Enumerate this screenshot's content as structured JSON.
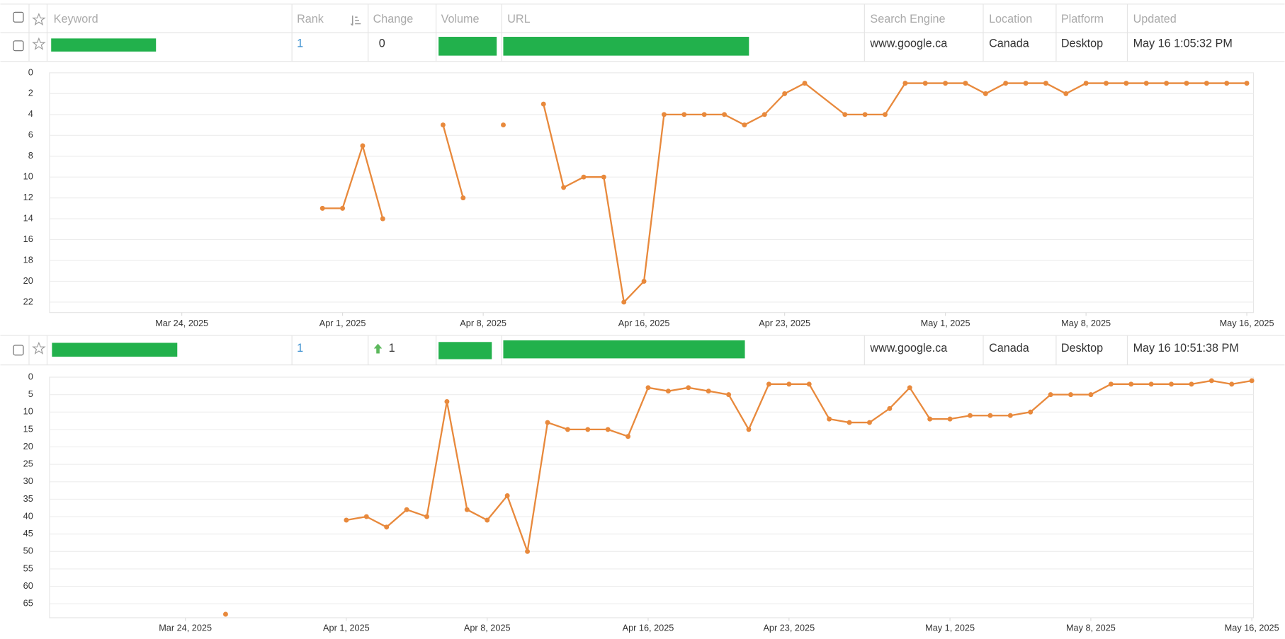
{
  "table": {
    "headers": [
      "Keyword",
      "Rank",
      "Change",
      "Volume",
      "URL",
      "Search Engine",
      "Location",
      "Platform",
      "Updated"
    ],
    "rows": [
      {
        "rank": 1,
        "change": 0,
        "search_engine": "www.google.ca",
        "location": "Canada",
        "platform": "Desktop",
        "updated": "May 16 1:05:32 PM"
      },
      {
        "rank": 1,
        "change": 1,
        "search_engine": "www.google.ca",
        "location": "Canada",
        "platform": "Desktop",
        "updated": "May 16 10:51:38 PM"
      }
    ]
  },
  "chart_data": [
    {
      "type": "line",
      "color": "#e8893c",
      "yreversed": true,
      "grid": true,
      "x": [
        "2025-03-31",
        "2025-04-01",
        "2025-04-02",
        "2025-04-03",
        "2025-04-04",
        "2025-04-06",
        "2025-04-07",
        "2025-04-08",
        "2025-04-09",
        "2025-04-10",
        "2025-04-11",
        "2025-04-12",
        "2025-04-13",
        "2025-04-14",
        "2025-04-15",
        "2025-04-16",
        "2025-04-17",
        "2025-04-18",
        "2025-04-19",
        "2025-04-20",
        "2025-04-21",
        "2025-04-22",
        "2025-04-23",
        "2025-04-24",
        "2025-04-26",
        "2025-04-27",
        "2025-04-28",
        "2025-04-29",
        "2025-04-30",
        "2025-05-01",
        "2025-05-02",
        "2025-05-03",
        "2025-05-04",
        "2025-05-05",
        "2025-05-06",
        "2025-05-07",
        "2025-05-08",
        "2025-05-09",
        "2025-05-10",
        "2025-05-11",
        "2025-05-12",
        "2025-05-13",
        "2025-05-14",
        "2025-05-15",
        "2025-05-16"
      ],
      "values": [
        13,
        13,
        7,
        14,
        null,
        5,
        12,
        null,
        5,
        null,
        3,
        11,
        10,
        10,
        22,
        20,
        4,
        4,
        4,
        4,
        5,
        4,
        2,
        1,
        4,
        4,
        4,
        1,
        1,
        1,
        1,
        2,
        1,
        1,
        1,
        2,
        1,
        1,
        1,
        1,
        1,
        1,
        1,
        1,
        1
      ],
      "xlim": [
        "2025-03-17T10:00:00Z",
        "2025-05-16T08:00:00Z"
      ],
      "xticks": [
        {
          "value": "2025-03-24",
          "label": "Mar 24, 2025"
        },
        {
          "value": "2025-04-01",
          "label": "Apr 1, 2025"
        },
        {
          "value": "2025-04-08",
          "label": "Apr 8, 2025"
        },
        {
          "value": "2025-04-16",
          "label": "Apr 16, 2025"
        },
        {
          "value": "2025-04-23",
          "label": "Apr 23, 2025"
        },
        {
          "value": "2025-05-01",
          "label": "May 1, 2025"
        },
        {
          "value": "2025-05-08",
          "label": "May 8, 2025"
        },
        {
          "value": "2025-05-16",
          "label": "May 16, 2025"
        }
      ],
      "ylim": [
        0,
        23
      ],
      "yticks": [
        0,
        2,
        4,
        6,
        8,
        10,
        12,
        14,
        16,
        18,
        20,
        22
      ]
    },
    {
      "type": "line",
      "color": "#e8893c",
      "yreversed": true,
      "grid": true,
      "x": [
        "2025-03-26",
        "2025-03-27",
        "2025-04-01",
        "2025-04-02",
        "2025-04-03",
        "2025-04-04",
        "2025-04-05",
        "2025-04-06",
        "2025-04-07",
        "2025-04-08",
        "2025-04-09",
        "2025-04-10",
        "2025-04-11",
        "2025-04-12",
        "2025-04-13",
        "2025-04-14",
        "2025-04-15",
        "2025-04-16",
        "2025-04-17",
        "2025-04-18",
        "2025-04-19",
        "2025-04-20",
        "2025-04-21",
        "2025-04-22",
        "2025-04-23",
        "2025-04-24",
        "2025-04-25",
        "2025-04-26",
        "2025-04-27",
        "2025-04-28",
        "2025-04-29",
        "2025-04-30",
        "2025-05-01",
        "2025-05-02",
        "2025-05-03",
        "2025-05-04",
        "2025-05-05",
        "2025-05-06",
        "2025-05-07",
        "2025-05-08",
        "2025-05-09",
        "2025-05-10",
        "2025-05-11",
        "2025-05-12",
        "2025-05-13",
        "2025-05-14",
        "2025-05-15",
        "2025-05-16"
      ],
      "values": [
        68,
        null,
        41,
        40,
        43,
        38,
        40,
        7,
        38,
        41,
        34,
        50,
        13,
        15,
        15,
        15,
        17,
        3,
        4,
        3,
        4,
        5,
        15,
        2,
        2,
        2,
        12,
        13,
        13,
        9,
        3,
        12,
        12,
        11,
        11,
        11,
        10,
        5,
        5,
        5,
        2,
        2,
        2,
        2,
        2,
        1,
        2,
        1
      ],
      "xlim": [
        "2025-03-17T06:00:00Z",
        "2025-05-16T02:00:00Z"
      ],
      "xticks": [
        {
          "value": "2025-03-24",
          "label": "Mar 24, 2025"
        },
        {
          "value": "2025-04-01",
          "label": "Apr 1, 2025"
        },
        {
          "value": "2025-04-08",
          "label": "Apr 8, 2025"
        },
        {
          "value": "2025-04-16",
          "label": "Apr 16, 2025"
        },
        {
          "value": "2025-04-23",
          "label": "Apr 23, 2025"
        },
        {
          "value": "2025-05-01",
          "label": "May 1, 2025"
        },
        {
          "value": "2025-05-08",
          "label": "May 8, 2025"
        },
        {
          "value": "2025-05-16",
          "label": "May 16, 2025"
        }
      ],
      "ylim": [
        0,
        69
      ],
      "yticks": [
        0,
        5,
        10,
        15,
        20,
        25,
        30,
        35,
        40,
        45,
        50,
        55,
        60,
        65
      ]
    }
  ]
}
